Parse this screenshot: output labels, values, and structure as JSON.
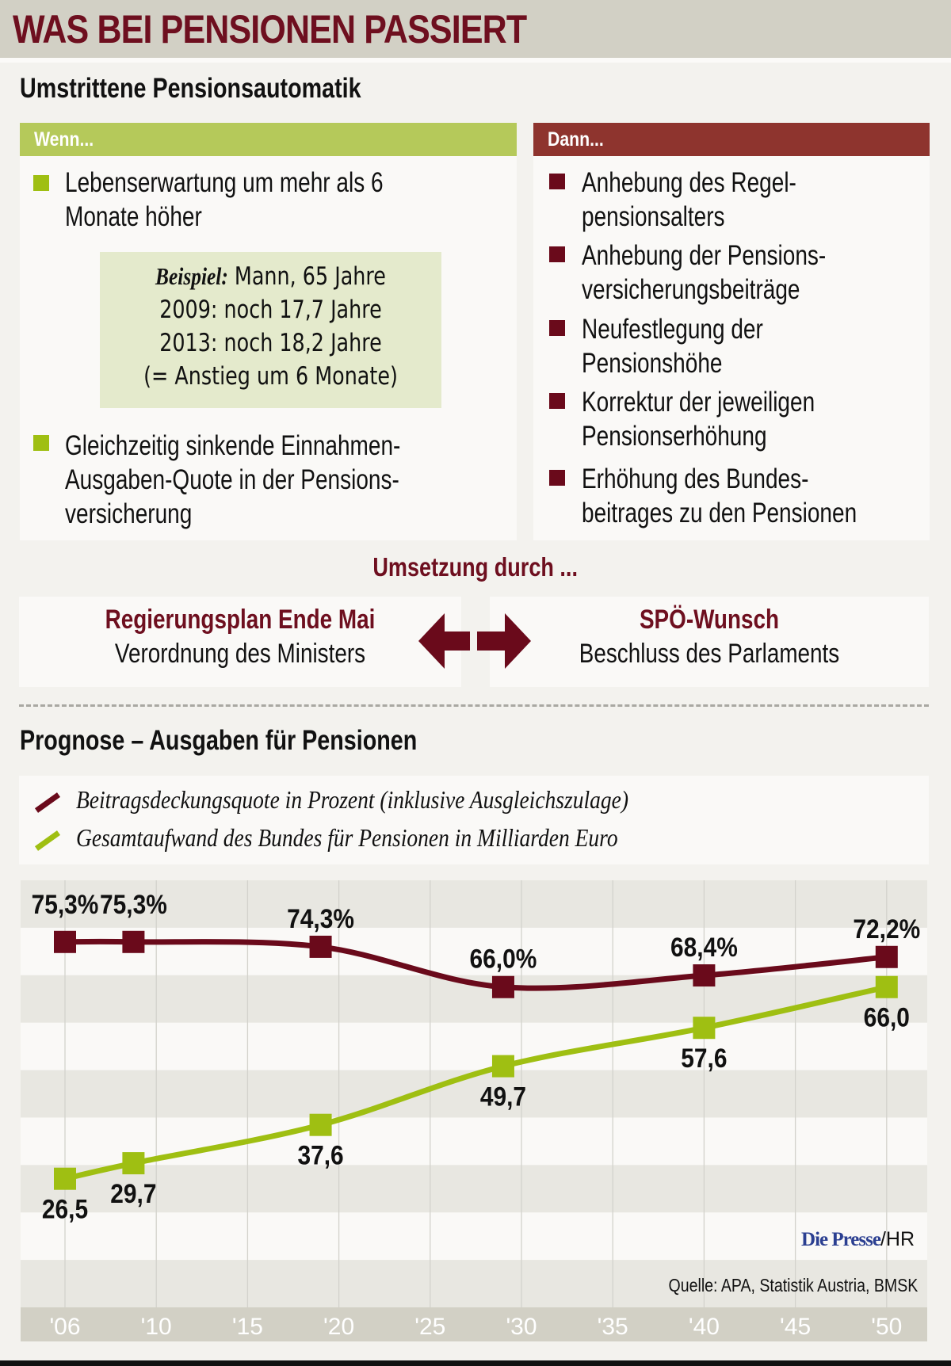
{
  "header": {
    "title": "WAS BEI PENSIONEN PASSIERT"
  },
  "automatik": {
    "title": "Umstrittene Pensionsautomatik",
    "wenn": {
      "label": "Wenn...",
      "color": "#b5c95a",
      "bullet_color": "#9fbf12",
      "items": [
        "Lebenserwartung um mehr als 6\nMonate höher",
        "Gleichzeitig sinkende Einnahmen-\nAusgaben-Quote in der Pensions-\nversicherung"
      ],
      "example": {
        "label": "Beispiel:",
        "lines": [
          "Mann, 65 Jahre",
          "2009: noch 17,7 Jahre",
          "2013: noch 18,2 Jahre",
          "(= Anstieg um 6 Monate)"
        ]
      }
    },
    "dann": {
      "label": "Dann...",
      "color": "#8e342e",
      "bullet_color": "#6a0a1b",
      "items": [
        "Anhebung des Regel-\npensionsalters",
        "Anhebung der Pensions-\nversicherungsbeiträge",
        "Neufestlegung der\nPensionshöhe",
        "Korrektur der jeweiligen\nPensionserhöhung",
        "Erhöhung des Bundes-\nbeitrages zu den Pensionen"
      ]
    }
  },
  "umsetzung": {
    "title": "Umsetzung durch ...",
    "left": {
      "title": "Regierungsplan Ende Mai",
      "subtitle": "Verordnung des Ministers"
    },
    "right": {
      "title": "SPÖ-Wunsch",
      "subtitle": "Beschluss des Parlaments"
    },
    "arrow_icon": "double-arrow-icon"
  },
  "prognose": {
    "title": "Prognose – Ausgaben für Pensionen"
  },
  "chart_data": {
    "type": "line",
    "title": "Prognose – Ausgaben für Pensionen",
    "xlabel": "",
    "ylabel": "",
    "x_tick_labels": [
      "'06",
      "'10",
      "'15",
      "'20",
      "'25",
      "'30",
      "'35",
      "'40",
      "'45",
      "'50"
    ],
    "x_tick_years": [
      2006,
      2010,
      2015,
      2020,
      2025,
      2030,
      2035,
      2040,
      2045,
      2050
    ],
    "ylim": [
      0,
      88
    ],
    "grid": "horizontal bands + vertical lines",
    "legend_position": "top",
    "series": [
      {
        "name": "Beitragsdeckungsquote in Prozent (inklusive Ausgleichszulage)",
        "color": "#6a0a1b",
        "x": [
          2006,
          2009,
          2019,
          2029,
          2040,
          2050
        ],
        "values": [
          75.3,
          75.3,
          74.3,
          66.0,
          68.4,
          72.2
        ],
        "labels": [
          "75,3%",
          "75,3%",
          "74,3%",
          "66,0%",
          "68,4%",
          "72,2%"
        ],
        "label_side": "above"
      },
      {
        "name": "Gesamtaufwand des Bundes für Pensionen in Milliarden Euro",
        "color": "#9fbf12",
        "x": [
          2006,
          2009,
          2019,
          2029,
          2040,
          2050
        ],
        "values": [
          26.5,
          29.7,
          37.6,
          49.7,
          57.6,
          66.0
        ],
        "labels": [
          "26,5",
          "29,7",
          "37,6",
          "49,7",
          "57,6",
          "66,0"
        ],
        "label_side": "below"
      }
    ]
  },
  "credits": {
    "brand": "Die Presse",
    "author": "/HR",
    "source": "Quelle: APA, Statistik Austria, BMSK"
  }
}
